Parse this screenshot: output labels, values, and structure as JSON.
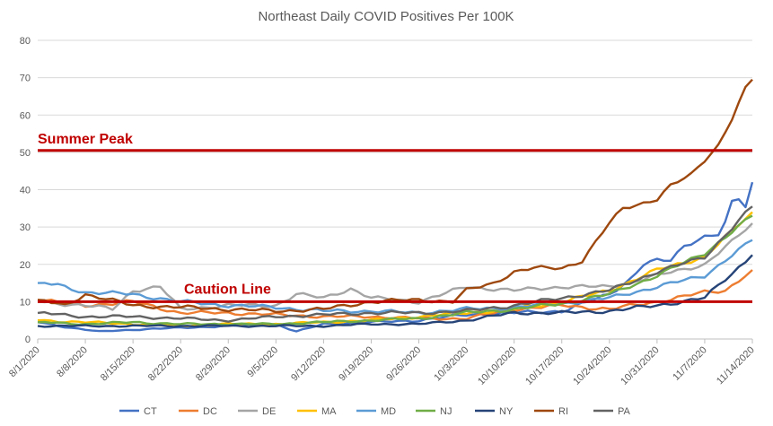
{
  "chart_data": {
    "type": "line",
    "title": "Northeast Daily COVID Positives Per 100K",
    "xlabel": "",
    "ylabel": "",
    "ylim": [
      0,
      80
    ],
    "yticks": [
      0,
      10,
      20,
      30,
      40,
      50,
      60,
      70,
      80
    ],
    "x_start": "8/1/2020",
    "x_end": "11/14/2020",
    "x_ticks": [
      "8/1/2020",
      "8/8/2020",
      "8/15/2020",
      "8/22/2020",
      "8/29/2020",
      "9/5/2020",
      "9/12/2020",
      "9/19/2020",
      "9/26/2020",
      "10/3/2020",
      "10/10/2020",
      "10/17/2020",
      "10/24/2020",
      "10/31/2020",
      "11/7/2020",
      "11/14/2020"
    ],
    "grid": "horizontal",
    "legend_position": "bottom",
    "reference_lines": [
      {
        "label": "Summer Peak",
        "value": 50.5,
        "color": "#C00000"
      },
      {
        "label": "Caution Line",
        "value": 10,
        "color": "#C00000"
      }
    ],
    "series": [
      {
        "name": "CT",
        "color": "#4472C4",
        "x": [
          "8/1/2020",
          "8/6/2020",
          "8/10/2020",
          "8/15/2020",
          "8/22/2020",
          "8/29/2020",
          "9/5/2020",
          "9/8/2020",
          "9/12/2020",
          "9/19/2020",
          "9/26/2020",
          "10/3/2020",
          "10/10/2020",
          "10/17/2020",
          "10/21/2020",
          "10/24/2020",
          "10/27/2020",
          "10/29/2020",
          "10/31/2020",
          "11/2/2020",
          "11/4/2020",
          "11/7/2020",
          "11/9/2020",
          "11/10/2020",
          "11/11/2020",
          "11/12/2020",
          "11/13/2020",
          "11/14/2020"
        ],
        "values": [
          4.5,
          3,
          2,
          2.5,
          3,
          3.5,
          4,
          2,
          4,
          4.5,
          5,
          6.5,
          7,
          7.5,
          10,
          12,
          16,
          20,
          21,
          21,
          25,
          27.5,
          28,
          31,
          36.5,
          37.5,
          35.5,
          42
        ]
      },
      {
        "name": "DC",
        "color": "#ED7D31",
        "x": [
          "8/1/2020",
          "8/8/2020",
          "8/15/2020",
          "8/22/2020",
          "8/29/2020",
          "9/5/2020",
          "9/12/2020",
          "9/19/2020",
          "9/26/2020",
          "10/3/2020",
          "10/10/2020",
          "10/17/2020",
          "10/24/2020",
          "10/31/2020",
          "11/7/2020",
          "11/10/2020",
          "11/14/2020"
        ],
        "values": [
          10.5,
          9,
          10,
          7,
          7,
          6.5,
          6,
          6,
          5.5,
          5.5,
          8,
          9,
          8,
          10,
          12.5,
          13,
          18.5
        ]
      },
      {
        "name": "DE",
        "color": "#A5A5A5",
        "x": [
          "8/1/2020",
          "8/8/2020",
          "8/12/2020",
          "8/15/2020",
          "8/19/2020",
          "8/22/2020",
          "8/29/2020",
          "9/5/2020",
          "9/8/2020",
          "9/12/2020",
          "9/16/2020",
          "9/19/2020",
          "9/26/2020",
          "10/3/2020",
          "10/10/2020",
          "10/17/2020",
          "10/24/2020",
          "10/31/2020",
          "11/7/2020",
          "11/11/2020",
          "11/14/2020"
        ],
        "values": [
          10,
          9,
          8,
          13,
          14,
          8,
          9,
          9,
          12,
          11,
          13.5,
          11,
          10,
          14,
          13,
          14,
          14,
          17,
          20,
          26,
          31
        ]
      },
      {
        "name": "MA",
        "color": "#FFC000",
        "x": [
          "8/1/2020",
          "8/8/2020",
          "8/15/2020",
          "8/22/2020",
          "8/29/2020",
          "9/5/2020",
          "9/12/2020",
          "9/19/2020",
          "9/26/2020",
          "10/3/2020",
          "10/10/2020",
          "10/17/2020",
          "10/24/2020",
          "10/31/2020",
          "11/7/2020",
          "11/14/2020"
        ],
        "values": [
          5,
          4.5,
          4,
          3.5,
          4,
          4,
          4.5,
          5,
          6,
          7,
          8,
          10,
          13,
          18.5,
          22,
          34
        ]
      },
      {
        "name": "MD",
        "color": "#5B9BD5",
        "x": [
          "8/1/2020",
          "8/4/2020",
          "8/8/2020",
          "8/15/2020",
          "8/22/2020",
          "8/29/2020",
          "9/5/2020",
          "9/12/2020",
          "9/19/2020",
          "9/26/2020",
          "10/3/2020",
          "10/10/2020",
          "10/17/2020",
          "10/24/2020",
          "10/31/2020",
          "11/7/2020",
          "11/14/2020"
        ],
        "values": [
          15,
          14.5,
          12.5,
          12,
          10,
          9,
          8.5,
          7.5,
          7.5,
          7,
          8,
          8.5,
          9.5,
          11,
          14,
          17,
          26.5
        ]
      },
      {
        "name": "NJ",
        "color": "#70AD47",
        "x": [
          "8/1/2020",
          "8/8/2020",
          "8/15/2020",
          "8/22/2020",
          "8/29/2020",
          "9/5/2020",
          "9/12/2020",
          "9/19/2020",
          "9/26/2020",
          "10/3/2020",
          "10/10/2020",
          "10/17/2020",
          "10/24/2020",
          "10/31/2020",
          "11/7/2020",
          "11/14/2020"
        ],
        "values": [
          4.5,
          4,
          4.5,
          4,
          4,
          4,
          4.5,
          5,
          5.5,
          7,
          8,
          9.5,
          12,
          17,
          23,
          33
        ]
      },
      {
        "name": "NY",
        "color": "#264478",
        "x": [
          "8/1/2020",
          "8/8/2020",
          "8/15/2020",
          "8/22/2020",
          "8/29/2020",
          "9/5/2020",
          "9/12/2020",
          "9/19/2020",
          "9/26/2020",
          "10/3/2020",
          "10/10/2020",
          "10/17/2020",
          "10/24/2020",
          "10/31/2020",
          "11/7/2020",
          "11/14/2020"
        ],
        "values": [
          3.5,
          3.5,
          3.5,
          3.5,
          3.5,
          3.5,
          3.5,
          4,
          4,
          5,
          7,
          7,
          7.5,
          9,
          11,
          22.5
        ]
      },
      {
        "name": "RI",
        "color": "#9E480E",
        "x": [
          "8/1/2020",
          "8/5/2020",
          "8/8/2020",
          "8/15/2020",
          "8/22/2020",
          "8/29/2020",
          "9/5/2020",
          "9/12/2020",
          "9/19/2020",
          "9/26/2020",
          "10/1/2020",
          "10/3/2020",
          "10/7/2020",
          "10/10/2020",
          "10/13/2020",
          "10/17/2020",
          "10/20/2020",
          "10/24/2020",
          "10/26/2020",
          "10/28/2020",
          "10/31/2020",
          "11/2/2020",
          "11/5/2020",
          "11/7/2020",
          "11/9/2020",
          "11/11/2020",
          "11/13/2020",
          "11/14/2020"
        ],
        "values": [
          10.5,
          9,
          12,
          9,
          8.5,
          8,
          7.5,
          8,
          10,
          10.5,
          10,
          13,
          15,
          18,
          19,
          19,
          21,
          31,
          35,
          36,
          37.5,
          41,
          44,
          48,
          52,
          59,
          67,
          69.5
        ]
      },
      {
        "name": "PA",
        "color": "#636363",
        "x": [
          "8/1/2020",
          "8/8/2020",
          "8/15/2020",
          "8/22/2020",
          "8/29/2020",
          "9/5/2020",
          "9/12/2020",
          "9/19/2020",
          "9/26/2020",
          "10/3/2020",
          "10/10/2020",
          "10/17/2020",
          "10/24/2020",
          "10/31/2020",
          "11/7/2020",
          "11/14/2020"
        ],
        "values": [
          7,
          6,
          6,
          5.5,
          5,
          6,
          6.5,
          7,
          7,
          7.5,
          9,
          11,
          13,
          18,
          22,
          35.5
        ]
      }
    ]
  }
}
